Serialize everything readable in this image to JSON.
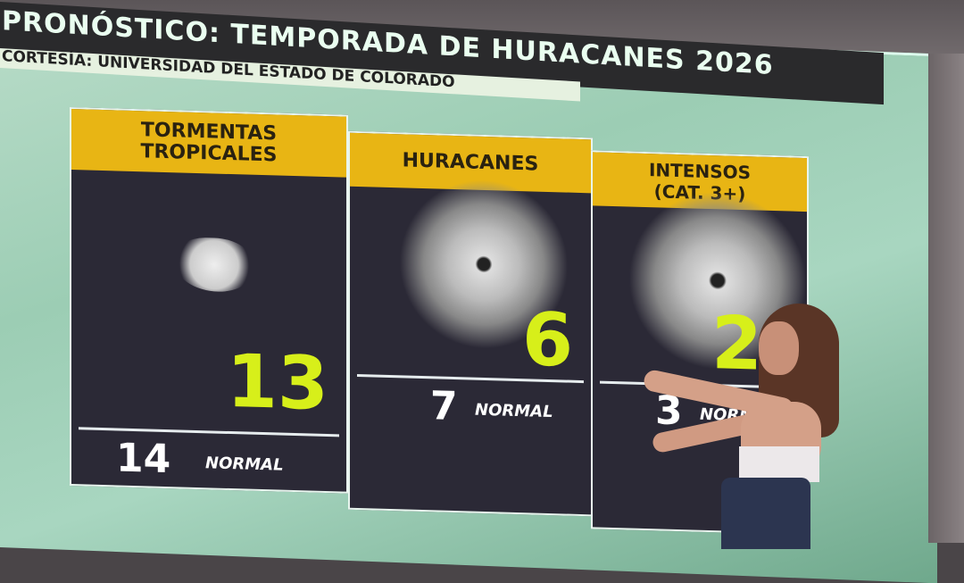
{
  "header": {
    "title": "PRONÓSTICO: TEMPORADA DE HURACANES 2026",
    "subtitle": "CORTESÍA: UNIVERSIDAD DEL ESTADO DE COLORADO"
  },
  "panels": [
    {
      "label": "TORMENTAS\nTROPICALES",
      "forecast": "13",
      "normal_value": "14",
      "normal_label": "NORMAL",
      "image": "cloud-satellite"
    },
    {
      "label": "HURACANES",
      "forecast": "6",
      "normal_value": "7",
      "normal_label": "NORMAL",
      "image": "hurricane-satellite"
    },
    {
      "label": "INTENSOS\n(CAT. 3+)",
      "forecast": "2",
      "normal_value": "3",
      "normal_label": "NORMAL",
      "image": "major-hurricane-satellite"
    }
  ],
  "colors": {
    "header_yellow": "#e8b514",
    "forecast_number": "#d7ef1a",
    "panel_bg": "#2b2936"
  }
}
